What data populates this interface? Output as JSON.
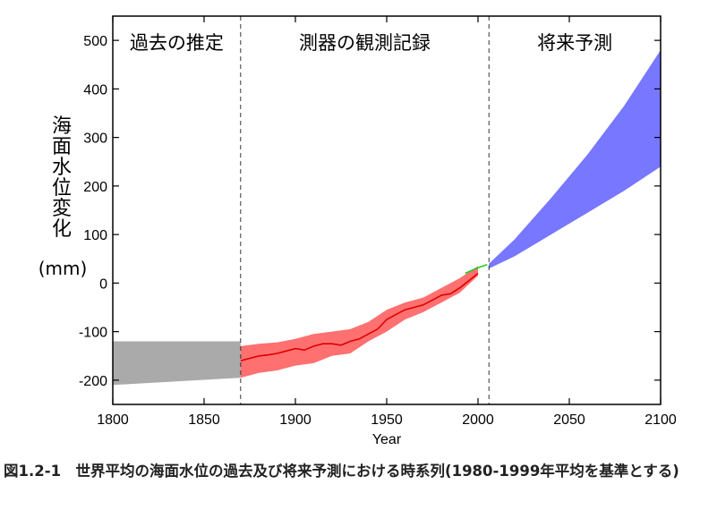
{
  "chart_data": {
    "type": "area",
    "xlabel": "Year",
    "ylabel": "海面水位変化",
    "ylabel_unit": "(mm)",
    "xlim": [
      1800,
      2100
    ],
    "ylim": [
      -250,
      550
    ],
    "x_ticks": [
      1800,
      1850,
      1900,
      1950,
      2000,
      2050,
      2100
    ],
    "y_ticks": [
      -200,
      -100,
      0,
      100,
      200,
      300,
      400,
      500
    ],
    "grid": false,
    "periods": [
      {
        "label": "過去の推定",
        "from": 1800,
        "to": 1870
      },
      {
        "label": "測器の観測記録",
        "from": 1870,
        "to": 2006
      },
      {
        "label": "将来予測",
        "from": 2006,
        "to": 2100
      }
    ],
    "series": [
      {
        "color": "#aaaaaa",
        "kind": "band",
        "x": [
          1800,
          1870
        ],
        "upper": [
          -120,
          -120
        ],
        "lower": [
          -210,
          -195
        ]
      },
      {
        "color": "#ff7070",
        "kind": "band",
        "x": [
          1870,
          1880,
          1890,
          1900,
          1910,
          1920,
          1930,
          1940,
          1950,
          1960,
          1970,
          1980,
          1990,
          2000
        ],
        "upper": [
          -130,
          -125,
          -122,
          -115,
          -105,
          -100,
          -95,
          -80,
          -55,
          -40,
          -30,
          -10,
          10,
          35
        ],
        "lower": [
          -195,
          -185,
          -180,
          -170,
          -165,
          -150,
          -145,
          -120,
          -100,
          -75,
          -60,
          -40,
          -20,
          15
        ]
      },
      {
        "color": "#dd0000",
        "kind": "line",
        "x": [
          1870,
          1875,
          1880,
          1885,
          1890,
          1895,
          1900,
          1905,
          1910,
          1915,
          1920,
          1925,
          1930,
          1935,
          1940,
          1945,
          1950,
          1955,
          1960,
          1965,
          1970,
          1975,
          1980,
          1985,
          1990,
          1995,
          2000
        ],
        "y": [
          -160,
          -155,
          -150,
          -148,
          -145,
          -140,
          -135,
          -138,
          -130,
          -125,
          -125,
          -128,
          -120,
          -115,
          -105,
          -95,
          -75,
          -65,
          -55,
          -50,
          -45,
          -35,
          -25,
          -22,
          -10,
          5,
          20
        ]
      },
      {
        "color": "#22cc22",
        "kind": "line",
        "x": [
          1993,
          1997,
          2001,
          2005
        ],
        "y": [
          20,
          27,
          33,
          38
        ]
      },
      {
        "color": "#7777ff",
        "kind": "band",
        "x": [
          2006,
          2020,
          2040,
          2060,
          2080,
          2100
        ],
        "upper": [
          40,
          90,
          175,
          265,
          365,
          480
        ],
        "lower": [
          30,
          55,
          100,
          145,
          190,
          240
        ]
      }
    ]
  },
  "caption": "図1.2-1　世界平均の海面水位の過去及び将来予測における時系列(1980-1999年平均を基準とする)"
}
